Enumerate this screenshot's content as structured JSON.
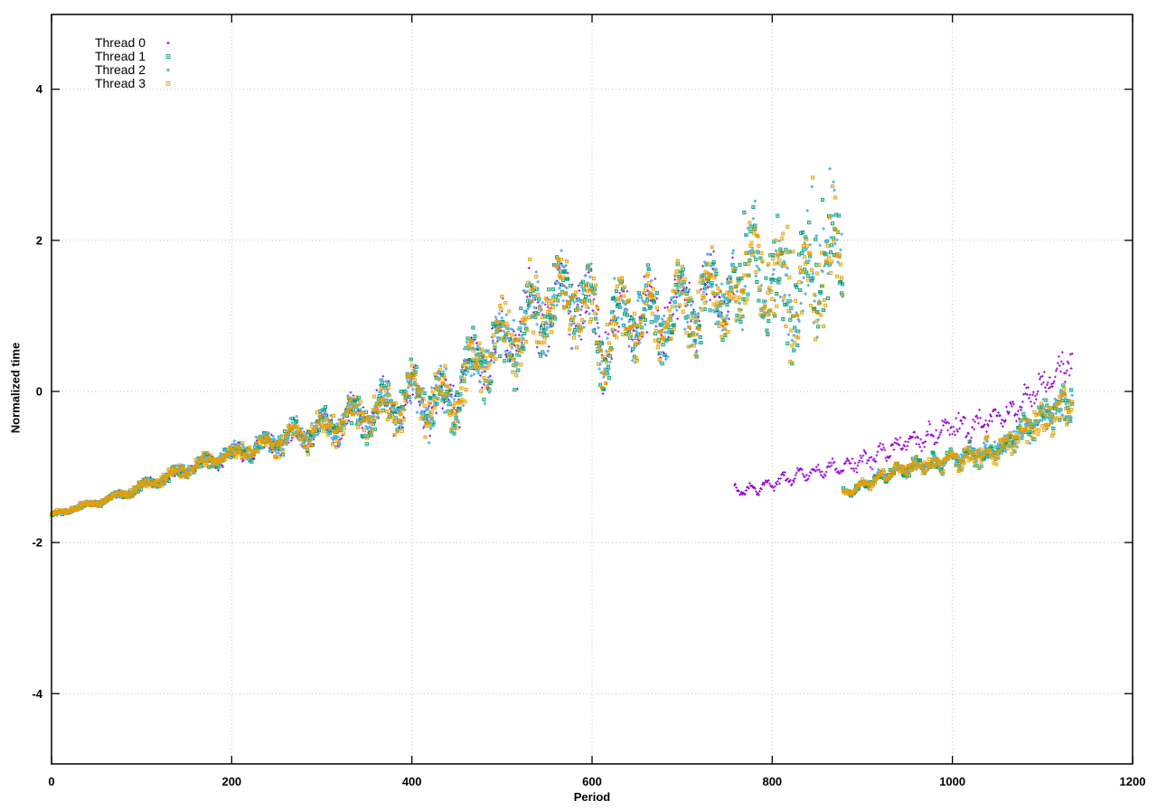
{
  "page": {
    "background": "#ffffff"
  },
  "chart_data": {
    "type": "scatter",
    "title": "",
    "xlabel": "Period",
    "ylabel": "Normalized time",
    "xlim": [
      0,
      1200
    ],
    "ylim": [
      -4.93,
      4.99
    ],
    "x_ticks": [
      0,
      200,
      400,
      600,
      800,
      1000,
      1200
    ],
    "y_ticks": [
      -4,
      -2,
      0,
      2,
      4
    ],
    "grid": true,
    "grid_color": "#c9c3b0",
    "axis_color": "#000000",
    "legend_position": "top-left",
    "x_step": 1,
    "x_data_end": 1133,
    "segment_defs": {
      "rise_common": {
        "x0": 0,
        "x1": 757,
        "anchors": [
          [
            0,
            -1.63
          ],
          [
            30,
            -1.53
          ],
          [
            60,
            -1.44
          ],
          [
            100,
            -1.26
          ],
          [
            140,
            -1.08
          ],
          [
            180,
            -0.9
          ],
          [
            220,
            -0.76
          ],
          [
            260,
            -0.62
          ],
          [
            300,
            -0.48
          ],
          [
            340,
            -0.33
          ],
          [
            380,
            -0.18
          ],
          [
            410,
            -0.05
          ],
          [
            435,
            -0.2
          ],
          [
            455,
            0.1
          ],
          [
            480,
            0.45
          ],
          [
            505,
            0.7
          ],
          [
            530,
            0.95
          ],
          [
            555,
            1.2
          ],
          [
            580,
            1.25
          ],
          [
            600,
            1.05
          ],
          [
            612,
            0.55
          ],
          [
            625,
            0.9
          ],
          [
            650,
            1.05
          ],
          [
            675,
            0.95
          ],
          [
            700,
            1.1
          ],
          [
            730,
            1.2
          ],
          [
            757,
            1.45
          ]
        ],
        "noise": [
          [
            0,
            0.035
          ],
          [
            60,
            0.05
          ],
          [
            120,
            0.08
          ],
          [
            180,
            0.11
          ],
          [
            240,
            0.15
          ],
          [
            300,
            0.2
          ],
          [
            350,
            0.28
          ],
          [
            400,
            0.33
          ],
          [
            450,
            0.4
          ],
          [
            500,
            0.5
          ],
          [
            550,
            0.55
          ],
          [
            612,
            0.5
          ],
          [
            757,
            0.5
          ]
        ],
        "osc": {
          "amp": [
            [
              0,
              0.01
            ],
            [
              200,
              0.06
            ],
            [
              300,
              0.14
            ],
            [
              380,
              0.22
            ],
            [
              450,
              0.28
            ],
            [
              550,
              0.3
            ],
            [
              757,
              0.3
            ]
          ],
          "period": 33,
          "phase": 0.8
        }
      },
      "high_cloud": {
        "x0": 758,
        "x1": 878,
        "anchors": [
          [
            758,
            1.5
          ],
          [
            775,
            1.62
          ],
          [
            795,
            1.45
          ],
          [
            815,
            1.3
          ],
          [
            835,
            1.3
          ],
          [
            855,
            1.65
          ],
          [
            868,
            1.72
          ],
          [
            878,
            1.55
          ]
        ],
        "noise": [
          [
            758,
            0.62
          ],
          [
            800,
            0.7
          ],
          [
            878,
            0.75
          ]
        ],
        "osc": {
          "amp": [
            [
              758,
              0.35
            ],
            [
              878,
              0.42
            ]
          ],
          "period": 30,
          "phase": 2.0
        }
      },
      "low_branch": {
        "x0": 879,
        "x1": 1133,
        "anchors": [
          [
            879,
            -1.34
          ],
          [
            895,
            -1.28
          ],
          [
            915,
            -1.16
          ],
          [
            935,
            -1.06
          ],
          [
            955,
            -1.0
          ],
          [
            975,
            -0.96
          ],
          [
            1000,
            -0.9
          ],
          [
            1025,
            -0.85
          ],
          [
            1045,
            -0.78
          ],
          [
            1060,
            -0.68
          ],
          [
            1075,
            -0.55
          ],
          [
            1090,
            -0.45
          ],
          [
            1105,
            -0.33
          ],
          [
            1120,
            -0.22
          ],
          [
            1133,
            -0.12
          ]
        ],
        "noise": [
          [
            879,
            0.04
          ],
          [
            920,
            0.07
          ],
          [
            960,
            0.1
          ],
          [
            1000,
            0.13
          ],
          [
            1050,
            0.17
          ],
          [
            1100,
            0.25
          ],
          [
            1133,
            0.3
          ]
        ],
        "osc": {
          "amp": [
            [
              879,
              0.04
            ],
            [
              1133,
              0.08
            ]
          ],
          "period": 20,
          "phase": 2.0
        }
      },
      "thread0_branch": {
        "x0": 758,
        "x1": 1133,
        "anchors": [
          [
            758,
            -1.32
          ],
          [
            775,
            -1.3
          ],
          [
            800,
            -1.22
          ],
          [
            825,
            -1.12
          ],
          [
            850,
            -1.06
          ],
          [
            875,
            -1.0
          ],
          [
            900,
            -0.92
          ],
          [
            925,
            -0.8
          ],
          [
            950,
            -0.68
          ],
          [
            975,
            -0.58
          ],
          [
            1000,
            -0.45
          ],
          [
            1020,
            -0.48
          ],
          [
            1040,
            -0.4
          ],
          [
            1060,
            -0.3
          ],
          [
            1080,
            -0.12
          ],
          [
            1100,
            0.08
          ],
          [
            1118,
            0.3
          ],
          [
            1133,
            0.42
          ]
        ],
        "noise": [
          [
            758,
            0.05
          ],
          [
            850,
            0.07
          ],
          [
            950,
            0.12
          ],
          [
            1050,
            0.17
          ],
          [
            1133,
            0.22
          ]
        ],
        "osc": {
          "amp": [
            [
              758,
              0.06
            ],
            [
              1133,
              0.1
            ]
          ],
          "period": 18,
          "phase": 1.0
        }
      }
    },
    "series": [
      {
        "id": "thread-0",
        "name": "Thread 0",
        "color": "#9400d3",
        "marker": "plus",
        "size": 1.4,
        "stroke_width": 0.9,
        "seed": 11,
        "segments": [
          {
            "def": "rise_common"
          },
          {
            "def": "thread0_branch"
          }
        ]
      },
      {
        "id": "thread-1",
        "name": "Thread 1",
        "color": "#009e73",
        "marker": "square",
        "size": 1.6,
        "stroke_width": 0.9,
        "seed": 22,
        "segments": [
          {
            "def": "rise_common"
          },
          {
            "def": "high_cloud",
            "spike": [
              0.04,
              0.8
            ],
            "vmax": 2.9
          },
          {
            "def": "low_branch"
          }
        ]
      },
      {
        "id": "thread-2",
        "name": "Thread 2",
        "color": "#56b4e9",
        "marker": "plus",
        "size": 1.7,
        "stroke_width": 1.5,
        "seed": 33,
        "segments": [
          {
            "def": "rise_common"
          },
          {
            "def": "high_cloud",
            "spike": [
              0.06,
              1.3
            ],
            "y_offset": 0.05,
            "vmax": 3.15
          },
          {
            "def": "low_branch"
          }
        ]
      },
      {
        "id": "thread-3",
        "name": "Thread 3",
        "color": "#e69f00",
        "marker": "square",
        "size": 1.6,
        "stroke_width": 0.9,
        "seed": 44,
        "segments": [
          {
            "def": "rise_common"
          },
          {
            "def": "high_cloud",
            "spike": [
              0.05,
              1.0
            ],
            "vmax": 2.95
          },
          {
            "def": "low_branch"
          }
        ]
      }
    ]
  }
}
